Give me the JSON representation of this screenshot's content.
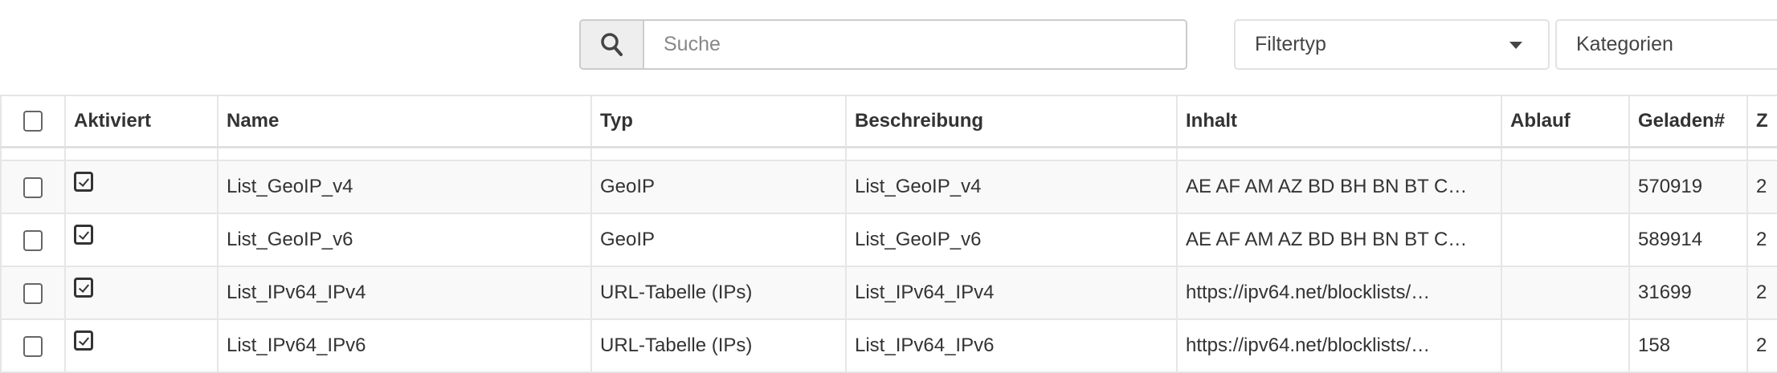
{
  "toolbar": {
    "search_placeholder": "Suche",
    "search_icon": "search-icon",
    "filter_type": "Filtertyp",
    "categories": "Kategorien"
  },
  "table": {
    "headers": [
      "Aktiviert",
      "Name",
      "Typ",
      "Beschreibung",
      "Inhalt",
      "Ablauf",
      "Geladen#",
      "Z"
    ],
    "rows": [
      {
        "selected": false,
        "activated": true,
        "name": "List_GeoIP_v4",
        "type": "GeoIP",
        "description": "List_GeoIP_v4",
        "content": "AE AF AM AZ BD BH BN BT C…",
        "expiry": "",
        "loaded": "570919",
        "z": "2"
      },
      {
        "selected": false,
        "activated": true,
        "name": "List_GeoIP_v6",
        "type": "GeoIP",
        "description": "List_GeoIP_v6",
        "content": "AE AF AM AZ BD BH BN BT C…",
        "expiry": "",
        "loaded": "589914",
        "z": "2"
      },
      {
        "selected": false,
        "activated": true,
        "name": "List_IPv64_IPv4",
        "type": "URL-Tabelle (IPs)",
        "description": "List_IPv64_IPv4",
        "content": "https://ipv64.net/blocklists/…",
        "expiry": "",
        "loaded": "31699",
        "z": "2"
      },
      {
        "selected": false,
        "activated": true,
        "name": "List_IPv64_IPv6",
        "type": "URL-Tabelle (IPs)",
        "description": "List_IPv64_IPv6",
        "content": "https://ipv64.net/blocklists/…",
        "expiry": "",
        "loaded": "158",
        "z": "2"
      }
    ]
  }
}
